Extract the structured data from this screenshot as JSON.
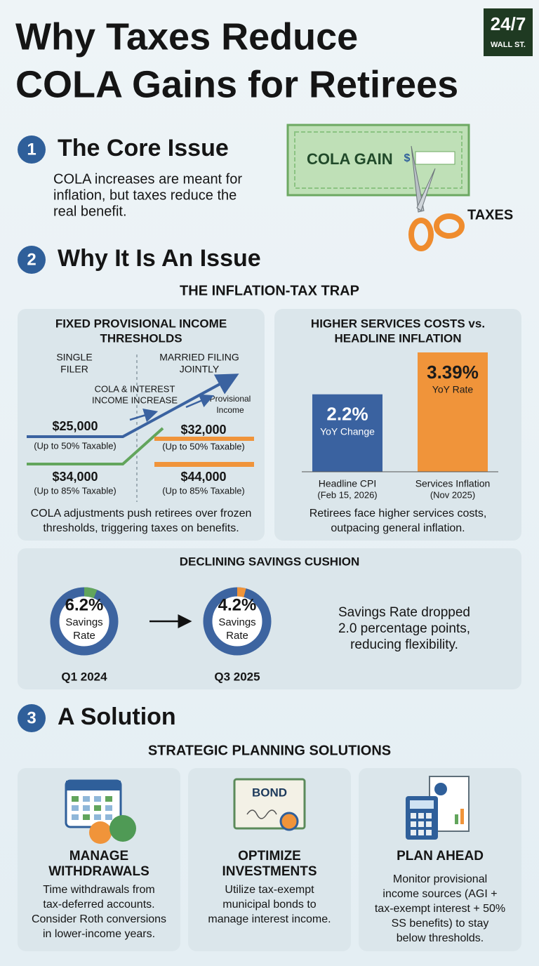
{
  "header": {
    "title_lines": [
      "Why Taxes Reduce",
      "COLA Gains for Retirees"
    ],
    "logo_top": "24/7",
    "logo_bottom": "WALL ST."
  },
  "core_issue": {
    "number": "1",
    "heading": "The Core Issue",
    "body_lines": [
      "COLA increases are meant for",
      "inflation, but taxes reduce the",
      "real benefit."
    ],
    "check_label": "COLA GAIN",
    "check_symbol": "$",
    "scissors_label": "TAXES"
  },
  "why_issue": {
    "number": "2",
    "heading": "Why It Is An Issue",
    "subheading": "THE INFLATION-TAX TRAP",
    "thresholds": {
      "title_lines": [
        "FIXED PROVISIONAL INCOME",
        "THRESHOLDS"
      ],
      "single_label_lines": [
        "SINGLE",
        "FILER"
      ],
      "married_label_lines": [
        "MARRIED FILING",
        "JOINTLY"
      ],
      "increase_label_lines": [
        "COLA & INTEREST",
        "INCOME INCREASE"
      ],
      "provisional_label_lines": [
        "Provisional",
        "Income"
      ],
      "single": [
        {
          "amount": "$25,000",
          "note": "(Up to 50% Taxable)"
        },
        {
          "amount": "$34,000",
          "note": "(Up to 85% Taxable)"
        }
      ],
      "married": [
        {
          "amount": "$32,000",
          "note": "(Up to 50% Taxable)"
        },
        {
          "amount": "$44,000",
          "note": "(Up to 85% Taxable)"
        }
      ],
      "caption_lines": [
        "COLA adjustments push retirees over frozen",
        "thresholds, triggering taxes on benefits."
      ]
    },
    "services_chart": {
      "type": "bar",
      "title_lines": [
        "HIGHER SERVICES COSTS vs.",
        "HEADLINE INFLATION"
      ],
      "categories": [
        "Headline CPI",
        "Services Inflation"
      ],
      "category_notes": [
        "(Feb 15, 2026)",
        "(Nov 2025)"
      ],
      "values": [
        2.2,
        3.39
      ],
      "value_labels": [
        "2.2%",
        "3.39%"
      ],
      "value_sublabels": [
        "YoY Change",
        "YoY Rate"
      ],
      "colors": [
        "#3a62a0",
        "#f0943a"
      ],
      "caption_lines": [
        "Retirees face higher services costs,",
        "outpacing general inflation."
      ]
    },
    "savings": {
      "type": "donut",
      "title": "DECLINING SAVINGS CUSHION",
      "categories": [
        "Q1 2024",
        "Q3 2025"
      ],
      "values": [
        6.2,
        4.2
      ],
      "value_labels": [
        "6.2%",
        "4.2%"
      ],
      "center_label_lines": [
        "Savings",
        "Rate"
      ],
      "colors": [
        "#62a55c",
        "#f0943a"
      ],
      "ring_color": "#3d64a0",
      "note_lines": [
        "Savings Rate dropped",
        "2.0 percentage points,",
        "reducing flexibility."
      ]
    }
  },
  "solution": {
    "number": "3",
    "heading": "A Solution",
    "subheading": "STRATEGIC PLANNING SOLUTIONS",
    "cards": [
      {
        "title_lines": [
          "MANAGE",
          "WITHDRAWALS"
        ],
        "body_lines": [
          "Time withdrawals from",
          "tax-deferred accounts.",
          "Consider Roth conversions",
          "in lower-income years."
        ]
      },
      {
        "title_lines": [
          "OPTIMIZE",
          "INVESTMENTS"
        ],
        "body_lines": [
          "Utilize tax-exempt",
          "municipal bonds to",
          "manage interest income."
        ]
      },
      {
        "title_lines": [
          "PLAN AHEAD"
        ],
        "body_lines": [
          "Monitor provisional",
          "income sources (AGI +",
          "tax-exempt interest + 50%",
          "SS benefits) to stay",
          "below thresholds."
        ]
      }
    ],
    "bond_label": "BOND"
  }
}
